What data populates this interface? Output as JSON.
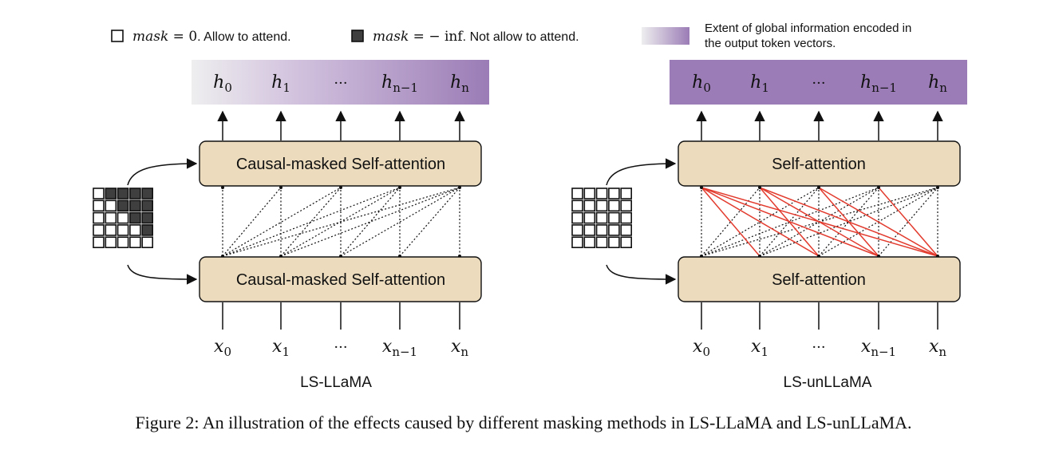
{
  "legend": {
    "allow": {
      "mask_label": "mask",
      "equals": " = 0",
      "text": ". Allow to attend."
    },
    "deny": {
      "mask_label": "mask",
      "equals": " = − inf",
      "text": ". Not allow to attend."
    },
    "extent_line1": "Extent of global information encoded in",
    "extent_line2": "the output token vectors."
  },
  "tokens": {
    "h": [
      {
        "base": "h",
        "sub": "0"
      },
      {
        "base": "h",
        "sub": "1"
      },
      {
        "base": "···",
        "sub": ""
      },
      {
        "base": "h",
        "sub": "n−1"
      },
      {
        "base": "h",
        "sub": "n"
      }
    ],
    "x": [
      {
        "base": "x",
        "sub": "0"
      },
      {
        "base": "x",
        "sub": "1"
      },
      {
        "base": "···",
        "sub": ""
      },
      {
        "base": "x",
        "sub": "n−1"
      },
      {
        "base": "x",
        "sub": "n"
      }
    ]
  },
  "left_panel": {
    "title": "LS-LLaMA",
    "upper_box": "Causal-masked Self-attention",
    "lower_box": "Causal-masked Self-attention"
  },
  "right_panel": {
    "title": "LS-unLLaMA",
    "upper_box": "Self-attention",
    "lower_box": "Self-attention"
  },
  "caption": "Figure 2: An illustration of the effects caused by different masking methods in LS-LLaMA and LS-unLLaMA.",
  "colors": {
    "purple": "#9b7cb6",
    "box_fill": "#ecdcbd",
    "mask_dark": "#3f3f3f",
    "red_link": "#e23b2e"
  }
}
